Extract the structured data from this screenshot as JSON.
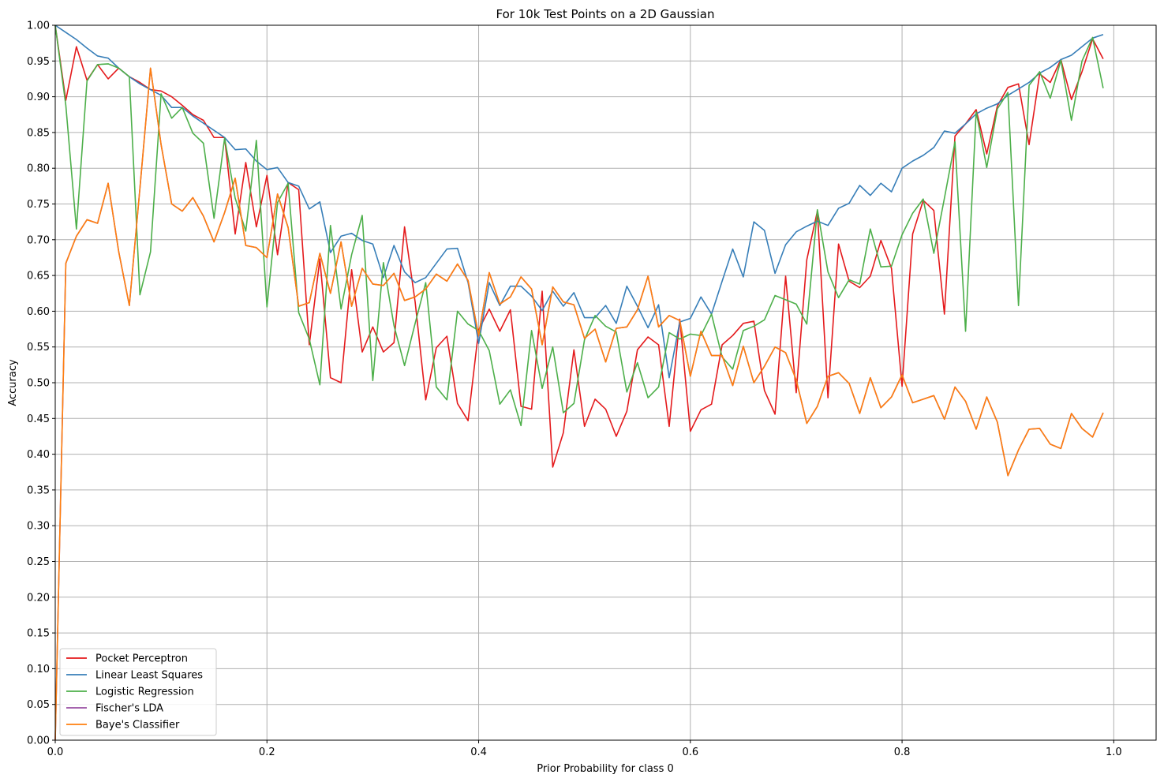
{
  "chart_data": {
    "type": "line",
    "title": "For 10k Test Points on a 2D Gaussian",
    "xlabel": "Prior Probability for class 0",
    "ylabel": "Accuracy",
    "xlim": [
      0.0,
      1.04
    ],
    "ylim": [
      0.0,
      1.0
    ],
    "xticks": [
      0.0,
      0.2,
      0.4,
      0.6,
      0.8,
      1.0
    ],
    "xtick_labels": [
      "0.0",
      "0.2",
      "0.4",
      "0.6",
      "0.8",
      "1.0"
    ],
    "yticks": [
      0.0,
      0.05,
      0.1,
      0.15,
      0.2,
      0.25,
      0.3,
      0.35,
      0.4,
      0.45,
      0.5,
      0.55,
      0.6,
      0.65,
      0.7,
      0.75,
      0.8,
      0.85,
      0.9,
      0.95,
      1.0
    ],
    "ytick_labels": [
      "0.00",
      "0.05",
      "0.10",
      "0.15",
      "0.20",
      "0.25",
      "0.30",
      "0.35",
      "0.40",
      "0.45",
      "0.50",
      "0.55",
      "0.60",
      "0.65",
      "0.70",
      "0.75",
      "0.80",
      "0.85",
      "0.90",
      "0.95",
      "1.00"
    ],
    "grid": true,
    "legend_position": "lower-left",
    "x": [
      0.0,
      0.01,
      0.02,
      0.03,
      0.04,
      0.05,
      0.06,
      0.07,
      0.08,
      0.09,
      0.1,
      0.11,
      0.12,
      0.13,
      0.14,
      0.15,
      0.16,
      0.17,
      0.18,
      0.19,
      0.2,
      0.21,
      0.22,
      0.23,
      0.24,
      0.25,
      0.26,
      0.27,
      0.28,
      0.29,
      0.3,
      0.31,
      0.32,
      0.33,
      0.34,
      0.35,
      0.36,
      0.37,
      0.38,
      0.39,
      0.4,
      0.41,
      0.42,
      0.43,
      0.44,
      0.45,
      0.46,
      0.47,
      0.48,
      0.49,
      0.5,
      0.51,
      0.52,
      0.53,
      0.54,
      0.55,
      0.56,
      0.57,
      0.58,
      0.59,
      0.6,
      0.61,
      0.62,
      0.63,
      0.64,
      0.65,
      0.66,
      0.67,
      0.68,
      0.69,
      0.7,
      0.71,
      0.72,
      0.73,
      0.74,
      0.75,
      0.76,
      0.77,
      0.78,
      0.79,
      0.8,
      0.81,
      0.82,
      0.83,
      0.84,
      0.85,
      0.86,
      0.87,
      0.88,
      0.89,
      0.9,
      0.91,
      0.92,
      0.93,
      0.94,
      0.95,
      0.96,
      0.97,
      0.98,
      0.99
    ],
    "series": [
      {
        "name": "Pocket Perceptron",
        "color": "#e41a1c",
        "values": [
          1.0,
          0.895,
          0.97,
          0.923,
          0.945,
          0.925,
          0.94,
          0.928,
          0.92,
          0.91,
          0.908,
          0.9,
          0.888,
          0.875,
          0.867,
          0.843,
          0.843,
          0.708,
          0.808,
          0.718,
          0.79,
          0.679,
          0.78,
          0.77,
          0.553,
          0.673,
          0.507,
          0.5,
          0.658,
          0.543,
          0.578,
          0.543,
          0.556,
          0.718,
          0.613,
          0.476,
          0.549,
          0.565,
          0.471,
          0.447,
          0.574,
          0.603,
          0.572,
          0.602,
          0.467,
          0.463,
          0.628,
          0.382,
          0.43,
          0.546,
          0.439,
          0.477,
          0.463,
          0.425,
          0.46,
          0.546,
          0.564,
          0.553,
          0.439,
          0.589,
          0.432,
          0.462,
          0.47,
          0.553,
          0.566,
          0.583,
          0.586,
          0.489,
          0.456,
          0.649,
          0.486,
          0.672,
          0.74,
          0.479,
          0.694,
          0.642,
          0.633,
          0.649,
          0.699,
          0.66,
          0.495,
          0.708,
          0.755,
          0.741,
          0.596,
          0.845,
          0.862,
          0.882,
          0.82,
          0.887,
          0.913,
          0.918,
          0.833,
          0.932,
          0.92,
          0.952,
          0.896,
          0.935,
          0.981,
          0.953
        ]
      },
      {
        "name": "Linear Least Squares",
        "color": "#377eb8",
        "values": [
          1.0,
          0.99,
          0.98,
          0.968,
          0.957,
          0.954,
          0.94,
          0.928,
          0.918,
          0.91,
          0.902,
          0.885,
          0.885,
          0.873,
          0.863,
          0.853,
          0.843,
          0.826,
          0.827,
          0.81,
          0.798,
          0.801,
          0.78,
          0.775,
          0.743,
          0.753,
          0.682,
          0.705,
          0.709,
          0.699,
          0.694,
          0.647,
          0.692,
          0.655,
          0.64,
          0.647,
          0.667,
          0.687,
          0.688,
          0.64,
          0.555,
          0.64,
          0.608,
          0.635,
          0.635,
          0.621,
          0.601,
          0.628,
          0.607,
          0.626,
          0.591,
          0.591,
          0.608,
          0.583,
          0.635,
          0.607,
          0.577,
          0.609,
          0.507,
          0.585,
          0.59,
          0.62,
          0.596,
          0.642,
          0.687,
          0.648,
          0.725,
          0.713,
          0.653,
          0.693,
          0.711,
          0.719,
          0.726,
          0.72,
          0.744,
          0.751,
          0.776,
          0.762,
          0.779,
          0.767,
          0.8,
          0.81,
          0.818,
          0.829,
          0.852,
          0.849,
          0.862,
          0.876,
          0.884,
          0.89,
          0.902,
          0.911,
          0.92,
          0.933,
          0.941,
          0.952,
          0.958,
          0.97,
          0.982,
          0.987
        ]
      },
      {
        "name": "Logistic Regression",
        "color": "#4daf4a",
        "values": [
          1.0,
          0.888,
          0.715,
          0.922,
          0.945,
          0.946,
          0.94,
          0.928,
          0.623,
          0.683,
          0.904,
          0.87,
          0.885,
          0.849,
          0.835,
          0.73,
          0.842,
          0.758,
          0.712,
          0.839,
          0.606,
          0.752,
          0.779,
          0.598,
          0.561,
          0.497,
          0.72,
          0.603,
          0.679,
          0.734,
          0.503,
          0.668,
          0.58,
          0.524,
          0.583,
          0.64,
          0.494,
          0.476,
          0.6,
          0.582,
          0.573,
          0.545,
          0.47,
          0.49,
          0.44,
          0.573,
          0.492,
          0.55,
          0.458,
          0.471,
          0.56,
          0.594,
          0.579,
          0.571,
          0.487,
          0.528,
          0.479,
          0.494,
          0.57,
          0.561,
          0.568,
          0.566,
          0.596,
          0.536,
          0.519,
          0.573,
          0.579,
          0.588,
          0.622,
          0.616,
          0.61,
          0.582,
          0.742,
          0.655,
          0.619,
          0.644,
          0.638,
          0.715,
          0.662,
          0.663,
          0.707,
          0.737,
          0.757,
          0.681,
          0.758,
          0.837,
          0.572,
          0.879,
          0.801,
          0.883,
          0.906,
          0.608,
          0.916,
          0.935,
          0.898,
          0.951,
          0.867,
          0.95,
          0.983,
          0.912
        ]
      },
      {
        "name": "Fischer's LDA",
        "color": "#984ea3",
        "values": [
          0.0,
          0.667,
          0.705,
          0.728,
          0.723,
          0.779,
          0.683,
          0.608,
          0.772,
          0.94,
          0.833,
          0.75,
          0.74,
          0.759,
          0.733,
          0.697,
          0.738,
          0.786,
          0.692,
          0.689,
          0.675,
          0.764,
          0.717,
          0.607,
          0.612,
          0.681,
          0.625,
          0.697,
          0.607,
          0.66,
          0.638,
          0.636,
          0.653,
          0.615,
          0.62,
          0.631,
          0.652,
          0.642,
          0.666,
          0.643,
          0.566,
          0.654,
          0.61,
          0.62,
          0.648,
          0.631,
          0.553,
          0.634,
          0.613,
          0.609,
          0.562,
          0.575,
          0.529,
          0.576,
          0.578,
          0.602,
          0.649,
          0.578,
          0.594,
          0.587,
          0.509,
          0.572,
          0.538,
          0.538,
          0.496,
          0.551,
          0.5,
          0.523,
          0.55,
          0.542,
          0.504,
          0.443,
          0.467,
          0.509,
          0.514,
          0.499,
          0.457,
          0.507,
          0.465,
          0.48,
          0.511,
          0.472,
          0.477,
          0.482,
          0.449,
          0.494,
          0.474,
          0.435,
          0.48,
          0.445,
          0.37,
          0.406,
          0.435,
          0.436,
          0.414,
          0.408,
          0.457,
          0.436,
          0.424,
          0.458
        ]
      },
      {
        "name": "Baye's Classifier",
        "color": "#ff7f0e",
        "values": [
          0.0,
          0.667,
          0.705,
          0.728,
          0.723,
          0.779,
          0.683,
          0.608,
          0.772,
          0.94,
          0.833,
          0.75,
          0.74,
          0.759,
          0.733,
          0.697,
          0.738,
          0.786,
          0.692,
          0.689,
          0.675,
          0.764,
          0.717,
          0.607,
          0.612,
          0.681,
          0.625,
          0.697,
          0.607,
          0.66,
          0.638,
          0.636,
          0.653,
          0.615,
          0.62,
          0.631,
          0.652,
          0.642,
          0.666,
          0.643,
          0.566,
          0.654,
          0.61,
          0.62,
          0.648,
          0.631,
          0.553,
          0.634,
          0.613,
          0.609,
          0.562,
          0.575,
          0.529,
          0.576,
          0.578,
          0.602,
          0.649,
          0.578,
          0.594,
          0.587,
          0.509,
          0.572,
          0.538,
          0.538,
          0.496,
          0.551,
          0.5,
          0.523,
          0.55,
          0.542,
          0.504,
          0.443,
          0.467,
          0.509,
          0.514,
          0.499,
          0.457,
          0.507,
          0.465,
          0.48,
          0.511,
          0.472,
          0.477,
          0.482,
          0.449,
          0.494,
          0.474,
          0.435,
          0.48,
          0.445,
          0.37,
          0.406,
          0.435,
          0.436,
          0.414,
          0.408,
          0.457,
          0.436,
          0.424,
          0.458
        ]
      }
    ]
  }
}
